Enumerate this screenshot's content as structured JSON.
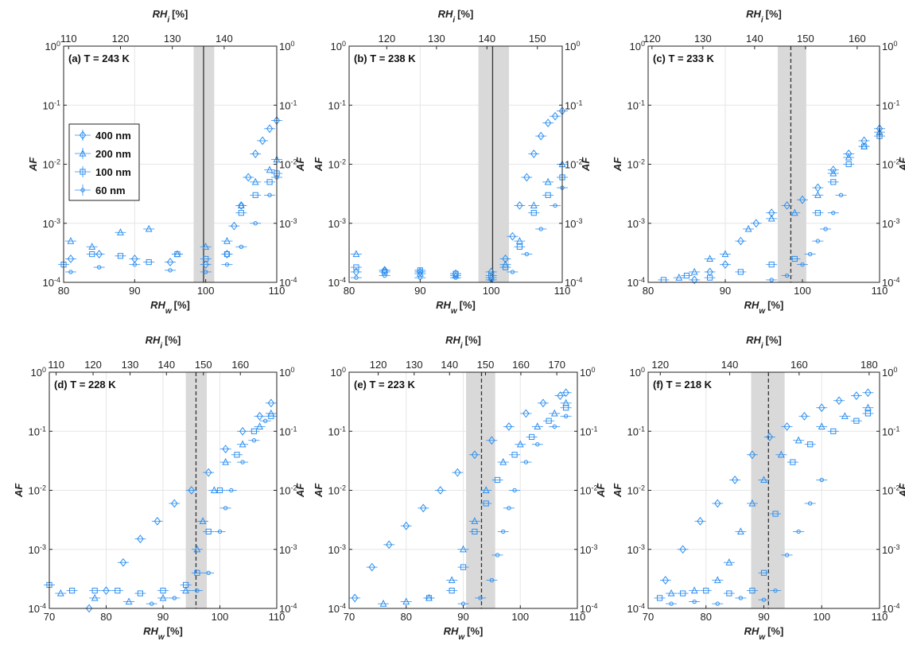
{
  "colors": {
    "series": "#2b8ef0",
    "shade": "#d9d9d9",
    "grid": "#e6e6e6",
    "axis": "#222222",
    "ice_line": "#333333"
  },
  "legend": [
    {
      "label": "400 nm",
      "marker": "diamond"
    },
    {
      "label": "200 nm",
      "marker": "triangle"
    },
    {
      "label": "100 nm",
      "marker": "square"
    },
    {
      "label": "60 nm",
      "marker": "circle"
    }
  ],
  "chart_data": [
    {
      "type": "scatter",
      "panel": "(a) T = 243 K",
      "title": "(a) T = 243 K",
      "xlabel_bottom": "RHw [%]",
      "xlabel_top": "RHi [%]",
      "ylabel_left": "AF",
      "xlim": [
        80,
        110
      ],
      "ylim": [
        0.0001,
        1
      ],
      "yscale": "log",
      "x_ticks": [
        80,
        90,
        100,
        110
      ],
      "top_ticks": [
        {
          "label": "110",
          "at": 80.7
        },
        {
          "label": "120",
          "at": 88.0
        },
        {
          "label": "130",
          "at": 95.3
        },
        {
          "label": "140",
          "at": 102.6
        }
      ],
      "shade": [
        98.3,
        101.2
      ],
      "ref_line": {
        "x": 99.7,
        "style": "solid"
      },
      "series": [
        {
          "name": "400 nm",
          "marker": "diamond",
          "x": [
            81,
            85,
            90,
            95,
            100,
            103,
            104,
            105,
            106,
            107,
            108,
            109,
            110
          ],
          "y": [
            0.00025,
            0.0003,
            0.00025,
            0.00022,
            0.0002,
            0.0003,
            0.0009,
            0.002,
            0.006,
            0.015,
            0.025,
            0.04,
            0.055
          ]
        },
        {
          "name": "200 nm",
          "marker": "triangle",
          "x": [
            81,
            84,
            88,
            92,
            96,
            100,
            103,
            105,
            107,
            109,
            110
          ],
          "y": [
            0.0005,
            0.0004,
            0.0007,
            0.0008,
            0.0003,
            0.0004,
            0.0005,
            0.002,
            0.005,
            0.008,
            0.012
          ]
        },
        {
          "name": "100 nm",
          "marker": "square",
          "x": [
            80,
            84,
            88,
            92,
            96,
            100,
            103,
            105,
            107,
            109,
            110
          ],
          "y": [
            0.0002,
            0.0003,
            0.00028,
            0.00022,
            0.0003,
            0.00025,
            0.0003,
            0.0015,
            0.003,
            0.005,
            0.007
          ]
        },
        {
          "name": "60 nm",
          "marker": "circle",
          "x": [
            81,
            85,
            90,
            95,
            100,
            103,
            105,
            107,
            109,
            110
          ],
          "y": [
            0.00015,
            0.00018,
            0.0002,
            0.00016,
            0.00015,
            0.0002,
            0.0004,
            0.001,
            0.003,
            0.006
          ]
        }
      ]
    },
    {
      "type": "scatter",
      "panel": "(b) T = 238 K",
      "title": "(b) T = 238 K",
      "xlabel_bottom": "RHw [%]",
      "xlabel_top": "RHi [%]",
      "ylabel_left": "AF",
      "xlim": [
        80,
        110
      ],
      "ylim": [
        0.0001,
        1
      ],
      "yscale": "log",
      "x_ticks": [
        80,
        90,
        100,
        110
      ],
      "top_ticks": [
        {
          "label": "120",
          "at": 85.3
        },
        {
          "label": "130",
          "at": 92.3
        },
        {
          "label": "140",
          "at": 99.4
        },
        {
          "label": "150",
          "at": 106.5
        }
      ],
      "shade": [
        98.2,
        102.5
      ],
      "ref_line": {
        "x": 100.2,
        "style": "solid"
      },
      "series": [
        {
          "name": "400 nm",
          "marker": "diamond",
          "x": [
            81,
            85,
            90,
            95,
            100,
            102,
            103,
            104,
            105,
            106,
            107,
            108,
            109,
            110
          ],
          "y": [
            0.00015,
            0.00016,
            0.00015,
            0.00014,
            0.00015,
            0.00025,
            0.0006,
            0.002,
            0.006,
            0.015,
            0.03,
            0.05,
            0.065,
            0.08
          ]
        },
        {
          "name": "200 nm",
          "marker": "triangle",
          "x": [
            81,
            85,
            90,
            95,
            100,
            102,
            104,
            106,
            108,
            110
          ],
          "y": [
            0.0003,
            0.00016,
            0.00014,
            0.00013,
            0.00012,
            0.0002,
            0.0005,
            0.002,
            0.005,
            0.01
          ]
        },
        {
          "name": "100 nm",
          "marker": "square",
          "x": [
            81,
            85,
            90,
            95,
            100,
            102,
            104,
            106,
            108,
            110
          ],
          "y": [
            0.00018,
            0.00015,
            0.00016,
            0.00014,
            0.00013,
            0.00018,
            0.0004,
            0.0015,
            0.003,
            0.006
          ]
        },
        {
          "name": "60 nm",
          "marker": "circle",
          "x": [
            81,
            85,
            90,
            95,
            100,
            103,
            105,
            107,
            109,
            110
          ],
          "y": [
            0.00012,
            0.00013,
            0.00012,
            0.00012,
            0.00011,
            0.00015,
            0.0003,
            0.0008,
            0.002,
            0.004
          ]
        }
      ]
    },
    {
      "type": "scatter",
      "panel": "(c) T = 233 K",
      "title": "(c) T = 233 K",
      "xlabel_bottom": "RHw [%]",
      "xlabel_top": "RHi [%]",
      "ylabel_left": "AF",
      "xlim": [
        80,
        110
      ],
      "ylim": [
        0.0001,
        1
      ],
      "yscale": "log",
      "x_ticks": [
        80,
        90,
        100,
        110
      ],
      "top_ticks": [
        {
          "label": "120",
          "at": 80.5
        },
        {
          "label": "130",
          "at": 87.1
        },
        {
          "label": "140",
          "at": 93.8
        },
        {
          "label": "150",
          "at": 100.4
        },
        {
          "label": "160",
          "at": 107.1
        }
      ],
      "shade": [
        96.8,
        100.5
      ],
      "ref_line": {
        "x": 98.5,
        "style": "dashed"
      },
      "series": [
        {
          "name": "400 nm",
          "marker": "diamond",
          "x": [
            86,
            88,
            90,
            92,
            94,
            96,
            98,
            100,
            102,
            104,
            106,
            108,
            110
          ],
          "y": [
            0.00011,
            0.00015,
            0.0002,
            0.0005,
            0.001,
            0.0015,
            0.002,
            0.0025,
            0.004,
            0.008,
            0.015,
            0.025,
            0.04
          ]
        },
        {
          "name": "200 nm",
          "marker": "triangle",
          "x": [
            84,
            86,
            88,
            90,
            93,
            96,
            99,
            102,
            104,
            106,
            108,
            110
          ],
          "y": [
            0.00012,
            0.00015,
            0.00025,
            0.0003,
            0.0008,
            0.0012,
            0.0015,
            0.003,
            0.007,
            0.013,
            0.02,
            0.035
          ]
        },
        {
          "name": "100 nm",
          "marker": "square",
          "x": [
            82,
            85,
            88,
            92,
            96,
            99,
            102,
            104,
            106,
            108,
            110
          ],
          "y": [
            0.00011,
            0.00013,
            0.00012,
            0.00015,
            0.0002,
            0.00025,
            0.0015,
            0.005,
            0.01,
            0.02,
            0.03
          ]
        },
        {
          "name": "60 nm",
          "marker": "circle",
          "x": [
            96,
            98,
            100,
            101,
            102,
            103,
            104,
            105
          ],
          "y": [
            0.00011,
            0.00013,
            0.0002,
            0.0003,
            0.0005,
            0.0008,
            0.0015,
            0.003
          ]
        }
      ]
    },
    {
      "type": "scatter",
      "panel": "(d) T = 228 K",
      "title": "(d) T = 228 K",
      "xlabel_bottom": "RHw [%]",
      "xlabel_top": "RHi [%]",
      "ylabel_left": "AF",
      "xlim": [
        70,
        110
      ],
      "ylim": [
        0.0001,
        1
      ],
      "yscale": "log",
      "x_ticks": [
        70,
        80,
        90,
        100,
        110
      ],
      "top_ticks": [
        {
          "label": "110",
          "at": 71.2
        },
        {
          "label": "120",
          "at": 77.7
        },
        {
          "label": "130",
          "at": 84.2
        },
        {
          "label": "140",
          "at": 90.6
        },
        {
          "label": "150",
          "at": 97.1
        },
        {
          "label": "160",
          "at": 103.6
        }
      ],
      "shade": [
        94.0,
        97.7
      ],
      "ref_line": {
        "x": 95.8,
        "style": "dashed"
      },
      "series": [
        {
          "name": "400 nm",
          "marker": "diamond",
          "x": [
            77,
            80,
            83,
            86,
            89,
            92,
            95,
            98,
            101,
            104,
            107,
            109
          ],
          "y": [
            0.0001,
            0.0002,
            0.0006,
            0.0015,
            0.003,
            0.006,
            0.01,
            0.02,
            0.05,
            0.1,
            0.18,
            0.3
          ]
        },
        {
          "name": "200 nm",
          "marker": "triangle",
          "x": [
            72,
            78,
            84,
            90,
            94,
            96,
            97,
            99,
            101,
            104,
            107,
            109
          ],
          "y": [
            0.00018,
            0.00015,
            0.00013,
            0.00015,
            0.0002,
            0.001,
            0.003,
            0.01,
            0.03,
            0.06,
            0.12,
            0.2
          ]
        },
        {
          "name": "100 nm",
          "marker": "square",
          "x": [
            70,
            74,
            78,
            82,
            86,
            90,
            94,
            96,
            98,
            100,
            103,
            106,
            109
          ],
          "y": [
            0.00025,
            0.0002,
            0.0002,
            0.0002,
            0.00018,
            0.0002,
            0.00025,
            0.0004,
            0.002,
            0.01,
            0.04,
            0.1,
            0.18
          ]
        },
        {
          "name": "60 nm",
          "marker": "circle",
          "x": [
            88,
            92,
            96,
            98,
            100,
            101,
            102,
            104,
            106,
            108
          ],
          "y": [
            0.00012,
            0.00015,
            0.0002,
            0.0004,
            0.002,
            0.005,
            0.01,
            0.03,
            0.07,
            0.15
          ]
        }
      ]
    },
    {
      "type": "scatter",
      "panel": "(e) T = 223 K",
      "title": "(e) T = 223 K",
      "xlabel_bottom": "RHw [%]",
      "xlabel_top": "RHi [%]",
      "ylabel_left": "AF",
      "xlim": [
        70,
        110
      ],
      "ylim": [
        0.0001,
        1
      ],
      "yscale": "log",
      "x_ticks": [
        70,
        80,
        90,
        100,
        110
      ],
      "top_ticks": [
        {
          "label": "120",
          "at": 75.1
        },
        {
          "label": "130",
          "at": 81.4
        },
        {
          "label": "140",
          "at": 87.6
        },
        {
          "label": "150",
          "at": 93.9
        },
        {
          "label": "160",
          "at": 100.1
        },
        {
          "label": "170",
          "at": 106.4
        }
      ],
      "shade": [
        90.5,
        95.6
      ],
      "ref_line": {
        "x": 93.2,
        "style": "dashed"
      },
      "series": [
        {
          "name": "400 nm",
          "marker": "diamond",
          "x": [
            71,
            74,
            77,
            80,
            83,
            86,
            89,
            92,
            95,
            98,
            101,
            104,
            107,
            108
          ],
          "y": [
            0.00015,
            0.0005,
            0.0012,
            0.0025,
            0.005,
            0.01,
            0.02,
            0.04,
            0.07,
            0.12,
            0.2,
            0.3,
            0.4,
            0.45
          ]
        },
        {
          "name": "200 nm",
          "marker": "triangle",
          "x": [
            76,
            80,
            84,
            88,
            90,
            92,
            94,
            97,
            100,
            103,
            106,
            108
          ],
          "y": [
            0.00012,
            0.00013,
            0.00015,
            0.0003,
            0.001,
            0.003,
            0.01,
            0.03,
            0.06,
            0.12,
            0.2,
            0.3
          ]
        },
        {
          "name": "100 nm",
          "marker": "square",
          "x": [
            84,
            88,
            90,
            92,
            94,
            96,
            99,
            102,
            105,
            108
          ],
          "y": [
            0.00015,
            0.0002,
            0.0005,
            0.002,
            0.006,
            0.015,
            0.04,
            0.08,
            0.15,
            0.25
          ]
        },
        {
          "name": "60 nm",
          "marker": "circle",
          "x": [
            90,
            93,
            95,
            96,
            97,
            98,
            99,
            101,
            103,
            106,
            108
          ],
          "y": [
            0.00012,
            0.00015,
            0.0003,
            0.0008,
            0.002,
            0.005,
            0.01,
            0.03,
            0.06,
            0.12,
            0.18
          ]
        }
      ]
    },
    {
      "type": "scatter",
      "panel": "(f) T = 218 K",
      "title": "(f) T = 218 K",
      "xlabel_bottom": "RHw [%]",
      "xlabel_top": "RHi [%]",
      "ylabel_left": "AF",
      "xlim": [
        70,
        110
      ],
      "ylim": [
        0.0001,
        1
      ],
      "yscale": "log",
      "x_ticks": [
        70,
        80,
        90,
        100,
        110
      ],
      "top_ticks": [
        {
          "label": "120",
          "at": 72.1
        },
        {
          "label": "140",
          "at": 84.1
        },
        {
          "label": "160",
          "at": 96.1
        },
        {
          "label": "180",
          "at": 108.2
        }
      ],
      "shade": [
        87.8,
        93.6
      ],
      "ref_line": {
        "x": 90.8,
        "style": "dashed"
      },
      "series": [
        {
          "name": "400 nm",
          "marker": "diamond",
          "x": [
            73,
            76,
            79,
            82,
            85,
            88,
            91,
            94,
            97,
            100,
            103,
            106,
            108
          ],
          "y": [
            0.0003,
            0.001,
            0.003,
            0.006,
            0.015,
            0.04,
            0.08,
            0.12,
            0.18,
            0.25,
            0.33,
            0.4,
            0.45
          ]
        },
        {
          "name": "200 nm",
          "marker": "triangle",
          "x": [
            74,
            78,
            82,
            84,
            86,
            88,
            90,
            93,
            96,
            100,
            104,
            108
          ],
          "y": [
            0.00018,
            0.0002,
            0.0003,
            0.0006,
            0.002,
            0.006,
            0.015,
            0.04,
            0.07,
            0.12,
            0.18,
            0.25
          ]
        },
        {
          "name": "100 nm",
          "marker": "square",
          "x": [
            72,
            76,
            80,
            84,
            88,
            90,
            92,
            95,
            98,
            102,
            106,
            108
          ],
          "y": [
            0.00015,
            0.00018,
            0.0002,
            0.00018,
            0.0002,
            0.0004,
            0.004,
            0.03,
            0.06,
            0.1,
            0.15,
            0.2
          ]
        },
        {
          "name": "60 nm",
          "marker": "circle",
          "x": [
            74,
            78,
            82,
            86,
            90,
            92,
            94,
            96,
            98,
            100
          ],
          "y": [
            0.00012,
            0.00013,
            0.00012,
            0.00015,
            0.00014,
            0.0002,
            0.0008,
            0.002,
            0.006,
            0.015
          ]
        }
      ]
    }
  ]
}
